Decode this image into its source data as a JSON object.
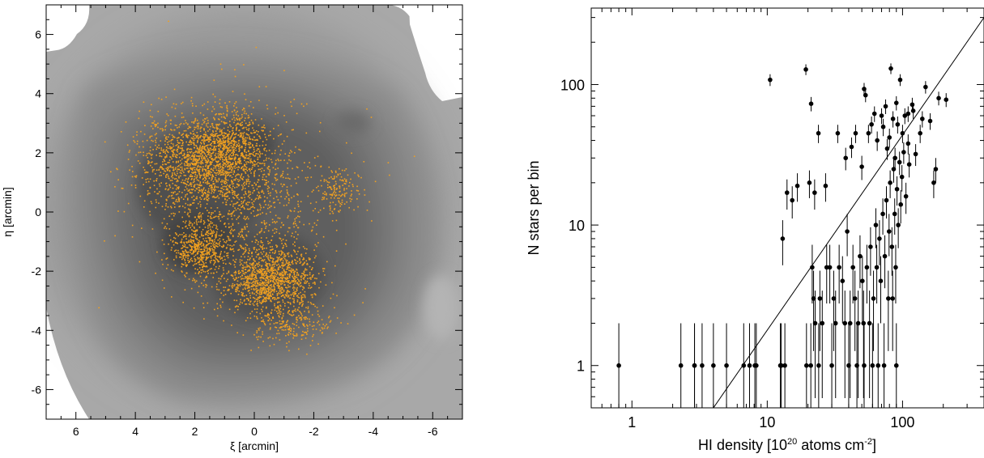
{
  "chart_data": [
    {
      "type": "scatter",
      "panel": "left",
      "description_style": "greyscale filled contour map of HI column density with orange star positions overlaid",
      "xlabel": "ξ [arcmin]",
      "ylabel": "η [arcmin]",
      "xlim": [
        7,
        -7
      ],
      "ylim": [
        -7,
        7
      ],
      "x_inverted": true,
      "xticks": [
        6,
        4,
        2,
        0,
        -2,
        -4,
        -6
      ],
      "xtick_labels": [
        "6",
        "4",
        "2",
        "0",
        "-2",
        "-4",
        "-6"
      ],
      "yticks": [
        -6,
        -4,
        -2,
        0,
        2,
        4,
        6
      ],
      "ytick_labels": [
        "-6",
        "-4",
        "-2",
        "0",
        "2",
        "4",
        "6"
      ],
      "contour_levels": 8,
      "contour_colors": [
        "#ffffff",
        "#a8a8a8",
        "#999999",
        "#8a8a8a",
        "#7b7b7b",
        "#6c6c6c",
        "#5e5e5e",
        "#505050",
        "#434343"
      ],
      "point_color": "#f0a020",
      "clusters": [
        {
          "center": [
            1.8,
            1.7
          ],
          "spread": [
            1.7,
            1.4
          ],
          "count": 1500
        },
        {
          "center": [
            0.6,
            2.2
          ],
          "spread": [
            0.9,
            1.2
          ],
          "count": 500
        },
        {
          "center": [
            -0.6,
            -2.3
          ],
          "spread": [
            1.2,
            0.9
          ],
          "count": 1150
        },
        {
          "center": [
            1.8,
            -1.3
          ],
          "spread": [
            0.8,
            0.7
          ],
          "count": 500
        },
        {
          "center": [
            0.3,
            -0.2
          ],
          "spread": [
            2.2,
            2.2
          ],
          "count": 650
        },
        {
          "center": [
            -2.8,
            0.8
          ],
          "spread": [
            0.7,
            0.7
          ],
          "count": 160
        },
        {
          "center": [
            -1.2,
            -3.8
          ],
          "spread": [
            1.2,
            0.6
          ],
          "count": 230
        },
        {
          "center": [
            0.5,
            0.5
          ],
          "spread": [
            3.3,
            3.0
          ],
          "count": 280
        }
      ]
    },
    {
      "type": "scatter",
      "panel": "right",
      "xlabel_main": "HI density [10",
      "xlabel_sup1": "20",
      "xlabel_mid": " atoms cm",
      "xlabel_sup2": "-2",
      "xlabel_end": "]",
      "ylabel": "N stars per bin",
      "xscale": "log",
      "yscale": "log",
      "xlim": [
        0.5,
        400
      ],
      "ylim": [
        0.5,
        350
      ],
      "xticks": [
        1,
        10,
        100
      ],
      "xtick_labels": [
        "1",
        "10",
        "100"
      ],
      "yticks": [
        1,
        10,
        100
      ],
      "ytick_labels": [
        "1",
        "10",
        "100"
      ],
      "error_bars": "poisson sqrt(N)",
      "point_color": "#000000",
      "fit_line": {
        "x": [
          4,
          400
        ],
        "y": [
          0.5,
          300
        ]
      },
      "points": [
        [
          0.8,
          1
        ],
        [
          2.3,
          1
        ],
        [
          2.9,
          1
        ],
        [
          2.9,
          1
        ],
        [
          3.3,
          1
        ],
        [
          4.0,
          1
        ],
        [
          5.0,
          1
        ],
        [
          6.7,
          1
        ],
        [
          7.4,
          1
        ],
        [
          8.1,
          1
        ],
        [
          8.3,
          1
        ],
        [
          12.5,
          1
        ],
        [
          12.7,
          1
        ],
        [
          13.5,
          1
        ],
        [
          19.5,
          1
        ],
        [
          21.0,
          1
        ],
        [
          24.0,
          1
        ],
        [
          30.0,
          1
        ],
        [
          40.0,
          1
        ],
        [
          46.0,
          1
        ],
        [
          52.0,
          1
        ],
        [
          60.0,
          1
        ],
        [
          66.0,
          1
        ],
        [
          73.0,
          1
        ],
        [
          90.0,
          1
        ],
        [
          10.5,
          108
        ],
        [
          19.3,
          128
        ],
        [
          21.1,
          73
        ],
        [
          23.9,
          45
        ],
        [
          33.2,
          45
        ],
        [
          52.0,
          93
        ],
        [
          53.3,
          84
        ],
        [
          82.0,
          130
        ],
        [
          90.0,
          74
        ],
        [
          96.0,
          108
        ],
        [
          110.0,
          62
        ],
        [
          120.0,
          65
        ],
        [
          148.0,
          96
        ],
        [
          210.0,
          78
        ],
        [
          13.0,
          8
        ],
        [
          14.0,
          17
        ],
        [
          15.3,
          15
        ],
        [
          16.7,
          19
        ],
        [
          20.5,
          20
        ],
        [
          22.4,
          17
        ],
        [
          27.0,
          19
        ],
        [
          38.0,
          30
        ],
        [
          42.0,
          36
        ],
        [
          45.0,
          45
        ],
        [
          50.0,
          26
        ],
        [
          56.0,
          45
        ],
        [
          59.0,
          52
        ],
        [
          62.0,
          62
        ],
        [
          65.0,
          40
        ],
        [
          70.0,
          60
        ],
        [
          72.0,
          50
        ],
        [
          75.0,
          70
        ],
        [
          77.0,
          35
        ],
        [
          80.0,
          42
        ],
        [
          85.0,
          57
        ],
        [
          88.0,
          30
        ],
        [
          92.0,
          52
        ],
        [
          100.0,
          45
        ],
        [
          104.0,
          60
        ],
        [
          110.0,
          38
        ],
        [
          118.0,
          72
        ],
        [
          125.0,
          32
        ],
        [
          135.0,
          45
        ],
        [
          140.0,
          57
        ],
        [
          160.0,
          55
        ],
        [
          170.0,
          20
        ],
        [
          176.0,
          25
        ],
        [
          185.0,
          80
        ],
        [
          21.5,
          5
        ],
        [
          22.0,
          3
        ],
        [
          22.6,
          2
        ],
        [
          24.5,
          3
        ],
        [
          25.5,
          2
        ],
        [
          27.5,
          5
        ],
        [
          29.0,
          5
        ],
        [
          31.0,
          3
        ],
        [
          32.0,
          2
        ],
        [
          34.0,
          5
        ],
        [
          36.0,
          4
        ],
        [
          37.5,
          2
        ],
        [
          39.0,
          9
        ],
        [
          41.0,
          2
        ],
        [
          43.0,
          5
        ],
        [
          44.5,
          3
        ],
        [
          47.0,
          2
        ],
        [
          48.5,
          6
        ],
        [
          50.5,
          4
        ],
        [
          51.5,
          2
        ],
        [
          54.5,
          5
        ],
        [
          57.0,
          2
        ],
        [
          58.0,
          7
        ],
        [
          61.0,
          3
        ],
        [
          63.5,
          10
        ],
        [
          64.5,
          5
        ],
        [
          67.5,
          8
        ],
        [
          69.0,
          4
        ],
        [
          71.5,
          12
        ],
        [
          74.0,
          6
        ],
        [
          76.0,
          15
        ],
        [
          78.5,
          3
        ],
        [
          79.5,
          9
        ],
        [
          81.0,
          20
        ],
        [
          83.5,
          7
        ],
        [
          84.5,
          3
        ],
        [
          86.0,
          25
        ],
        [
          87.5,
          12
        ],
        [
          89.0,
          5
        ],
        [
          91.0,
          18
        ],
        [
          93.0,
          10
        ],
        [
          95.0,
          28
        ],
        [
          97.0,
          14
        ],
        [
          99.0,
          22
        ],
        [
          102.0,
          33
        ],
        [
          106.0,
          16
        ],
        [
          112.0,
          27
        ]
      ]
    }
  ]
}
